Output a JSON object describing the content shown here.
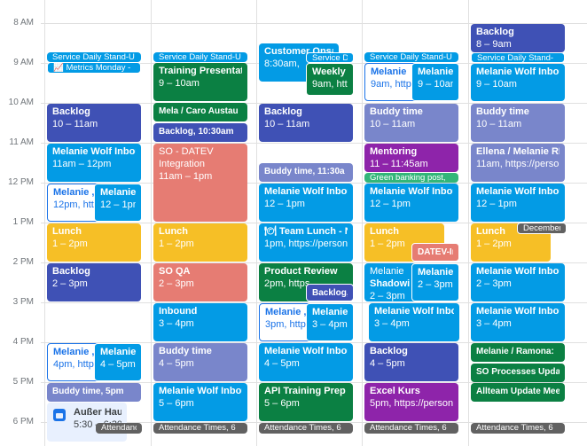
{
  "time_labels": [
    "8 AM",
    "9 AM",
    "10 AM",
    "11 AM",
    "12 PM",
    "1 PM",
    "2 PM",
    "3 PM",
    "4 PM",
    "5 PM",
    "6 PM"
  ],
  "events": {
    "d1": {
      "standup": "Service Daily Stand-U",
      "metrics": "📈 Metrics Monday -",
      "backlog_t": "Backlog",
      "backlog_s": "10 – 11am",
      "mw_t": "Melanie Wolf Inbou",
      "mw_s": "11am – 12pm",
      "mel_a_t": "Melanie ,",
      "mel_a_s": "12pm, htt",
      "mel_b_t": "Melanie V",
      "mel_b_s": "12 – 1pm",
      "lunch_t": "Lunch",
      "lunch_s": "1 – 2pm",
      "backlog2_t": "Backlog",
      "backlog2_s": "2 – 3pm",
      "mel_c_t": "Melanie ,",
      "mel_c_s": "4pm, http",
      "mel_d_t": "Melanie V",
      "mel_d_s": "4 – 5pm",
      "buddy": "Buddy time, 5pm",
      "ooo_t": "Außer Haus",
      "ooo_s": "5:30 – 6:30",
      "attendance": "Attendance Times, 6"
    },
    "d2": {
      "standup": "Service Daily Stand-U",
      "training_t": "Training Presentatio",
      "training_s": "9 – 10am",
      "mela": "Mela / Caro Austau",
      "backlog": "Backlog, 10:30am",
      "so_t": "SO - DATEV",
      "so_t2": "Integration",
      "so_s": "11am – 1pm",
      "lunch_t": "Lunch",
      "lunch_s": "1 – 2pm",
      "soqa_t": "SO QA",
      "soqa_s": "2 – 3pm",
      "inbound_t": "Inbound",
      "inbound_s": "3 – 4pm",
      "buddy_t": "Buddy time",
      "buddy_s": "4 – 5pm",
      "mw_t": "Melanie Wolf Inbou",
      "mw_s": "5 – 6pm",
      "attendance": "Attendance Times, 6"
    },
    "d3": {
      "customer_t": "Customer Onsa",
      "customer_s": "8:30am,",
      "standup": "Service D",
      "weekly_t": "Weekly -",
      "weekly_s": "9am, htt",
      "backlog_t": "Backlog",
      "backlog_s": "10 – 11am",
      "buddy": "Buddy time, 11:30a",
      "mw_t": "Melanie Wolf Inbou",
      "mw_s": "12 – 1pm",
      "team_t": "🍽 Team Lunch - N",
      "team_s": "1pm, https://person",
      "review_t": "Product Review",
      "review_s": "2pm, https",
      "backlog2": "Backlog,",
      "mel_a_t": "Melanie ,",
      "mel_a_s": "3pm, http",
      "mel_b_t": "Melanie V",
      "mel_b_s": "3 – 4pm",
      "mw2_t": "Melanie Wolf Inbou",
      "mw2_s": "4 – 5pm",
      "api_t": "API Training Prep",
      "api_s": "5 – 6pm",
      "attendance": "Attendance Times, 6"
    },
    "d4": {
      "standup": "Service Daily Stand-U",
      "mel_a_t": "Melanie",
      "mel_a_s": "9am, http",
      "mel_b_t": "Melanie V",
      "mel_b_s": "9 – 10am",
      "buddy_t": "Buddy time",
      "buddy_s": "10 – 11am",
      "mentoring_t": "Mentoring",
      "mentoring_s": "11 – 11:45am",
      "green": "Green banking post,",
      "mw_t": "Melanie Wolf Inbou",
      "mw_s": "12 – 1pm",
      "lunch_t": "Lunch",
      "lunch_s": "1 – 2pm",
      "datev": "DATEV-In",
      "shadow_t": "Melanie",
      "shadow_t2": "Shadowi",
      "shadow_s": "2 – 3pm",
      "mel_c_t": "Melanie V",
      "mel_c_s": "2 – 3pm",
      "mw2_t": "Melanie Wolf Inbou",
      "mw2_s": "3 – 4pm",
      "backlog_t": "Backlog",
      "backlog_s": "4 – 5pm",
      "excel_t": "Excel Kurs",
      "excel_s": "5pm, https://person",
      "attendance": "Attendance Times, 6"
    },
    "d5": {
      "backlog_t": "Backlog",
      "backlog_s": "8 – 9am",
      "standup": "Service Daily Stand-",
      "mw_t": "Melanie Wolf Inbou",
      "mw_s": "9 – 10am",
      "buddy_t": "Buddy time",
      "buddy_s": "10 – 11am",
      "ellena_t": "Ellena / Melanie RE",
      "ellena_s": "11am, https://perso",
      "mw2_t": "Melanie Wolf Inbou",
      "mw2_s": "12 – 1pm",
      "lunch_t": "Lunch",
      "lunch_s": "1 – 2pm",
      "december": "December",
      "mw3_t": "Melanie Wolf Inbou",
      "mw3_s": "2 – 3pm",
      "mw4_t": "Melanie Wolf Inbou",
      "mw4_s": "3 – 4pm",
      "ramona": "Melanie / Ramona:",
      "soproc": "SO Processes Upda",
      "allteam": "Allteam Update Mee",
      "attendance": "Attendance Times, 6"
    }
  }
}
